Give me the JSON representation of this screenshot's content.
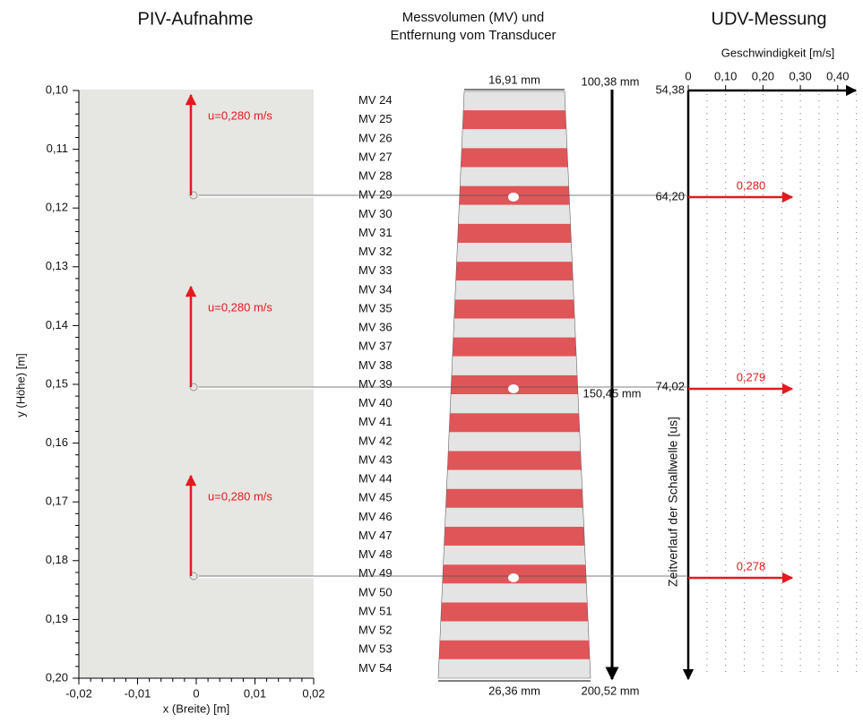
{
  "piv": {
    "title": "PIV-Aufnahme",
    "y_axis_label": "y (Höhe) [m]",
    "x_axis_label": "x (Breite) [m]",
    "y_ticks": [
      "0,10",
      "0,11",
      "0,12",
      "0,13",
      "0,14",
      "0,15",
      "0,16",
      "0,17",
      "0,18",
      "0,19",
      "0,20"
    ],
    "x_ticks": [
      "-0,02",
      "-0,01",
      "0",
      "0,01",
      "0,02"
    ],
    "velocity_labels": [
      "u=0,280 m/s",
      "u=0,280 m/s",
      "u=0,280 m/s"
    ]
  },
  "mv": {
    "title_lines": [
      "Messvolumen (MV) und",
      "Entfernung vom Transducer"
    ],
    "labels": [
      "MV 24",
      "MV 25",
      "MV 26",
      "MV 27",
      "MV 28",
      "MV 29",
      "MV 30",
      "MV 31",
      "MV 32",
      "MV 33",
      "MV 34",
      "MV 35",
      "MV 36",
      "MV 37",
      "MV 38",
      "MV 39",
      "MV 40",
      "MV 41",
      "MV 42",
      "MV 43",
      "MV 44",
      "MV 45",
      "MV 46",
      "MV 47",
      "MV 48",
      "MV 49",
      "MV 50",
      "MV 51",
      "MV 52",
      "MV 53",
      "MV 54"
    ],
    "top_width": "16,91 mm",
    "bottom_width": "26,36 mm",
    "distances": [
      "100,38 mm",
      "150,45 mm",
      "200,52 mm"
    ]
  },
  "udv": {
    "title": "UDV-Messung",
    "velocity_axis_label": "Geschwindigkeit [m/s]",
    "velocity_ticks": [
      "0",
      "0,10",
      "0,20",
      "0,30",
      "0,40"
    ],
    "time_axis_label": "Zeitverlauf der Schallwelle [us]",
    "time_labels": [
      "54,38",
      "64,20",
      "74,02"
    ],
    "velocity_values": [
      "0,280",
      "0,279",
      "0,278"
    ]
  }
}
